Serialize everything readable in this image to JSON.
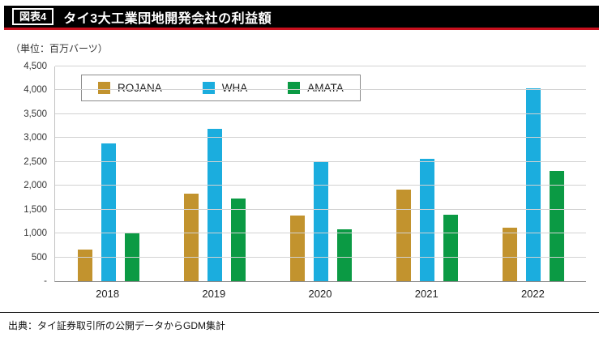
{
  "header": {
    "tag": "図表4",
    "title": "タイ3大工業団地開発会社の利益額"
  },
  "unit_label": "（単位：百万バーツ）",
  "source": "出典：タイ証券取引所の公開データからGDM集計",
  "colors": {
    "header_bg": "#000000",
    "header_accent": "#c8101e",
    "grid": "#d2d2d2",
    "rojana": "#c2932e",
    "wha": "#1badde",
    "amata": "#0b9a44"
  },
  "chart_data": {
    "type": "bar",
    "title": "タイ3大工業団地開発会社の利益額",
    "xlabel": "",
    "ylabel": "百万バーツ",
    "categories": [
      "2018",
      "2019",
      "2020",
      "2021",
      "2022"
    ],
    "series": [
      {
        "name": "ROJANA",
        "color": "#c2932e",
        "values": [
          660,
          1830,
          1370,
          1920,
          1120
        ]
      },
      {
        "name": "WHA",
        "color": "#1badde",
        "values": [
          2890,
          3200,
          2520,
          2570,
          4050
        ]
      },
      {
        "name": "AMATA",
        "color": "#0b9a44",
        "values": [
          1010,
          1740,
          1080,
          1390,
          2310
        ]
      }
    ],
    "ylim": [
      0,
      4500
    ],
    "ytick_step": 500,
    "ytick_labels": [
      "-",
      "500",
      "1,000",
      "1,500",
      "2,000",
      "2,500",
      "3,000",
      "3,500",
      "4,000",
      "4,500"
    ],
    "grid": true,
    "legend_position": "top-left"
  }
}
